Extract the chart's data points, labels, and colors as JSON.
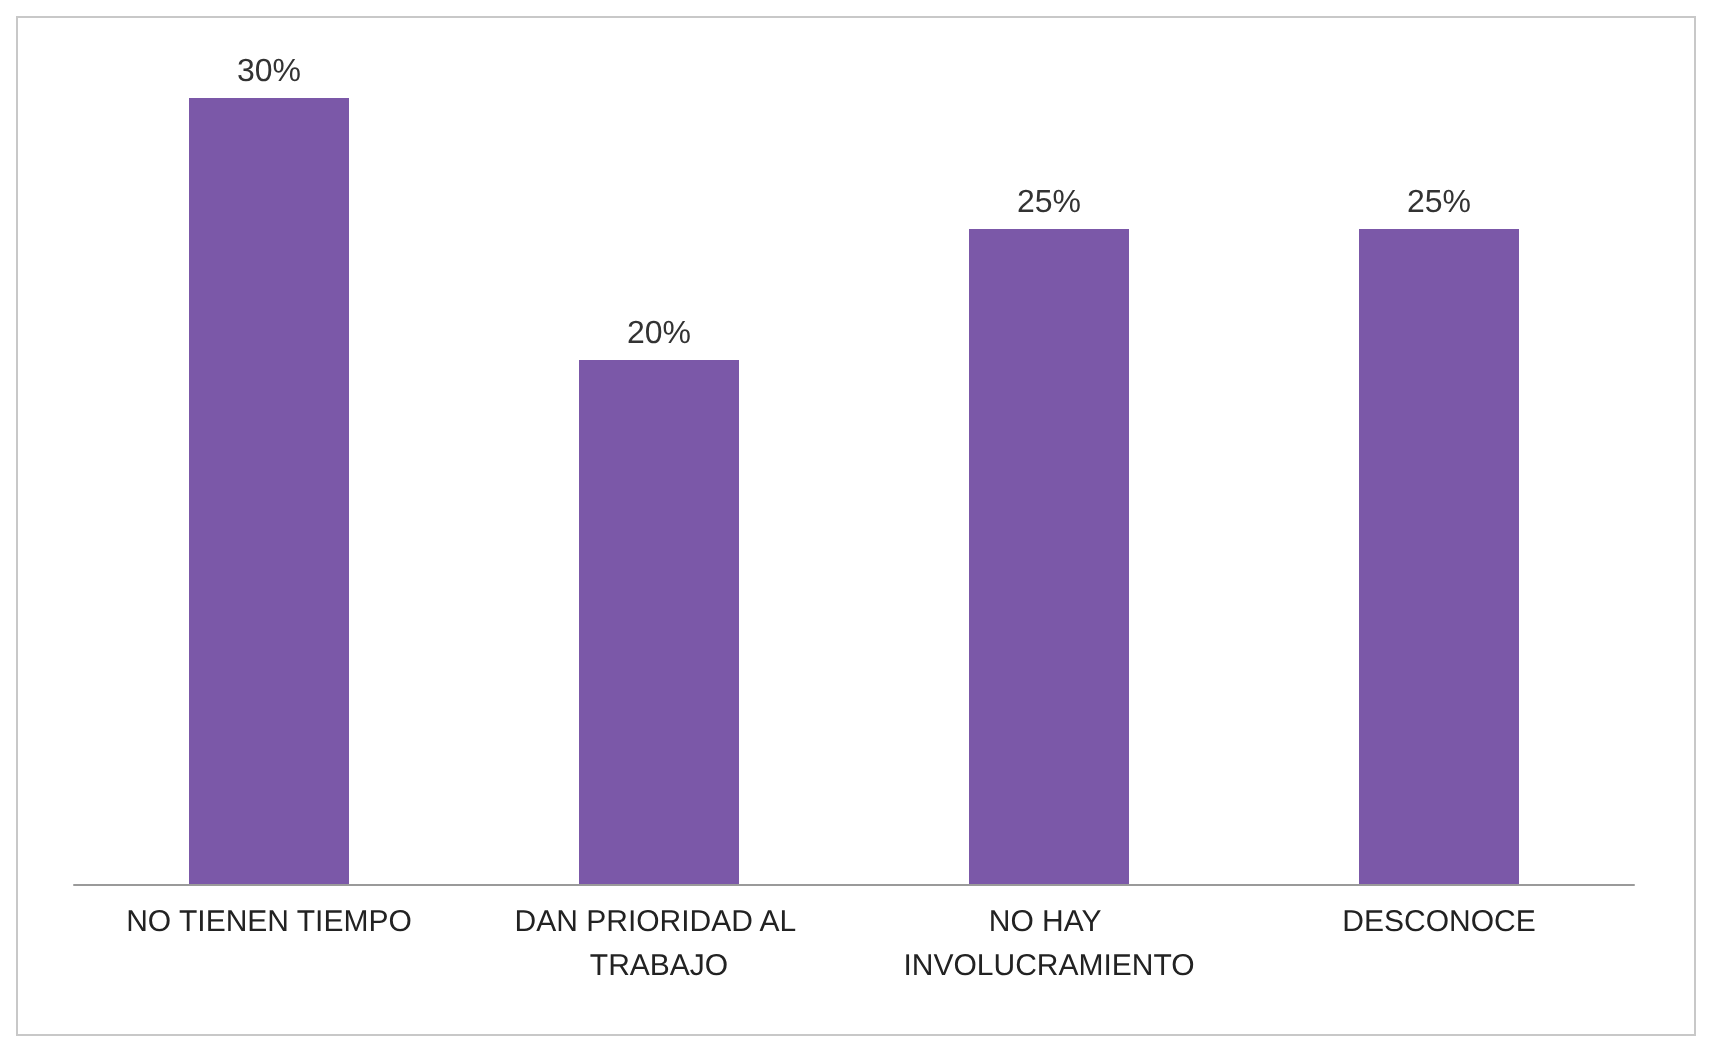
{
  "chart_data": {
    "type": "bar",
    "categories": [
      "NO TIENEN TIEMPO",
      "DAN PRIORIDAD AL TRABAJO",
      "NO HAY INVOLUCRAMIENTO",
      "DESCONOCE"
    ],
    "values": [
      30,
      20,
      25,
      25
    ],
    "value_labels": [
      "30%",
      "20%",
      "25%",
      "25%"
    ],
    "color": "#7b58a8"
  }
}
